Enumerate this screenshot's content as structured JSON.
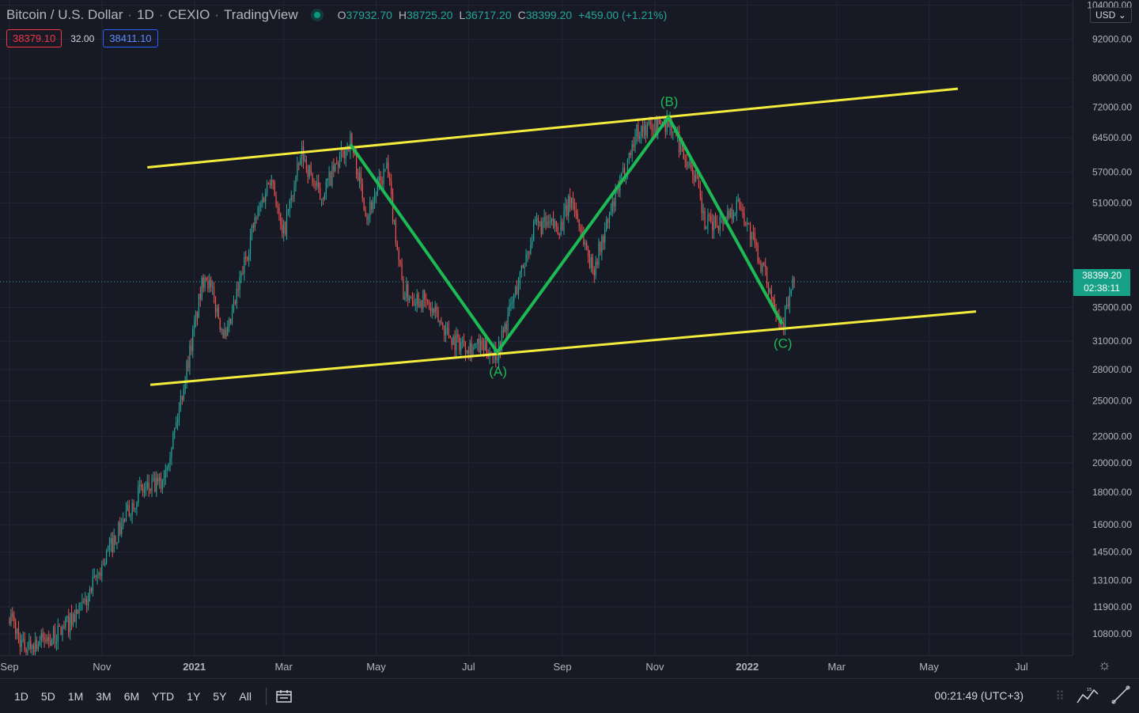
{
  "header": {
    "symbol": "Bitcoin / U.S. Dollar",
    "interval": "1D",
    "exchange": "CEXIO",
    "source": "TradingView",
    "ohlc": {
      "o_label": "O",
      "o": "37932.70",
      "h_label": "H",
      "h": "38725.20",
      "l_label": "L",
      "l": "36717.20",
      "c_label": "C",
      "c": "38399.20",
      "change": "+459.00 (+1.21%)"
    },
    "bid": "38379.10",
    "spread": "32.00",
    "ask": "38411.10"
  },
  "price_axis": {
    "currency": "USD",
    "last_price": "38399.20",
    "countdown": "02:38:11"
  },
  "bottom_bar": {
    "ranges": [
      "1D",
      "5D",
      "1M",
      "3M",
      "6M",
      "YTD",
      "1Y",
      "5Y",
      "All"
    ],
    "clock": "00:21:49 (UTC+3)"
  },
  "colors": {
    "background": "#171a25",
    "up": "#26a69a",
    "down": "#ef5350",
    "channel": "#f4ec3c",
    "wave": "#1db954"
  },
  "chart_data": {
    "type": "candlestick",
    "title": "Bitcoin / U.S. Dollar",
    "y_scale": "log",
    "y_ticks": [
      104000,
      92000,
      80000,
      72000,
      64500,
      57000,
      51000,
      45000,
      35000,
      31000,
      28000,
      25000,
      22000,
      20000,
      18000,
      16000,
      14500,
      13100,
      11900,
      10800
    ],
    "y_tick_labels": [
      "104000.00",
      "92000.00",
      "80000.00",
      "72000.00",
      "64500.00",
      "57000.00",
      "51000.00",
      "45000.00",
      "35000.00",
      "31000.00",
      "28000.00",
      "25000.00",
      "22000.00",
      "20000.00",
      "18000.00",
      "16000.00",
      "14500.00",
      "13100.00",
      "11900.00",
      "10800.00"
    ],
    "x_ticks": [
      "Sep",
      "Nov",
      "2021",
      "Mar",
      "May",
      "Jul",
      "Sep",
      "Nov",
      "2022",
      "Mar",
      "May",
      "Jul"
    ],
    "x_tick_dates": [
      "2020-09-01",
      "2020-11-01",
      "2021-01-01",
      "2021-03-01",
      "2021-05-01",
      "2021-07-01",
      "2021-09-01",
      "2021-11-01",
      "2022-01-01",
      "2022-03-01",
      "2022-05-01",
      "2022-07-01"
    ],
    "x_range": [
      "2020-09-01",
      "2022-08-10"
    ],
    "y_range": [
      10000,
      106000
    ],
    "last_price": 38399.2,
    "price_path": [
      [
        "2020-09-01",
        11600
      ],
      [
        "2020-09-10",
        10300
      ],
      [
        "2020-10-01",
        10700
      ],
      [
        "2020-10-20",
        11900
      ],
      [
        "2020-11-05",
        14500
      ],
      [
        "2020-11-25",
        18000
      ],
      [
        "2020-12-10",
        18500
      ],
      [
        "2020-12-20",
        23000
      ],
      [
        "2021-01-08",
        40000
      ],
      [
        "2021-01-22",
        31000
      ],
      [
        "2021-02-08",
        46000
      ],
      [
        "2021-02-21",
        57000
      ],
      [
        "2021-02-28",
        45000
      ],
      [
        "2021-03-13",
        61000
      ],
      [
        "2021-03-25",
        52000
      ],
      [
        "2021-04-14",
        64000
      ],
      [
        "2021-04-25",
        49000
      ],
      [
        "2021-05-08",
        58000
      ],
      [
        "2021-05-19",
        37000
      ],
      [
        "2021-06-01",
        36000
      ],
      [
        "2021-06-22",
        31000
      ],
      [
        "2021-07-20",
        29800
      ],
      [
        "2021-08-14",
        47000
      ],
      [
        "2021-08-31",
        47000
      ],
      [
        "2021-09-07",
        52000
      ],
      [
        "2021-09-21",
        40000
      ],
      [
        "2021-10-05",
        51000
      ],
      [
        "2021-10-20",
        66000
      ],
      [
        "2021-11-10",
        68500
      ],
      [
        "2021-11-28",
        56000
      ],
      [
        "2021-12-04",
        47000
      ],
      [
        "2021-12-15",
        48000
      ],
      [
        "2021-12-27",
        51000
      ],
      [
        "2022-01-10",
        41000
      ],
      [
        "2022-01-24",
        33000
      ],
      [
        "2022-02-01",
        38400
      ]
    ],
    "annotations": {
      "channel_upper": [
        [
          "2020-12-01",
          58000
        ],
        [
          "2022-05-20",
          77000
        ]
      ],
      "channel_lower": [
        [
          "2020-12-03",
          26500
        ],
        [
          "2022-06-01",
          34500
        ]
      ],
      "wave": [
        {
          "label": "",
          "date": "2021-04-14",
          "price": 63000
        },
        {
          "label": "(A)",
          "date": "2021-07-20",
          "price": 29800
        },
        {
          "label": "(B)",
          "date": "2021-11-10",
          "price": 69500
        },
        {
          "label": "(C)",
          "date": "2022-01-24",
          "price": 33000
        }
      ]
    }
  }
}
